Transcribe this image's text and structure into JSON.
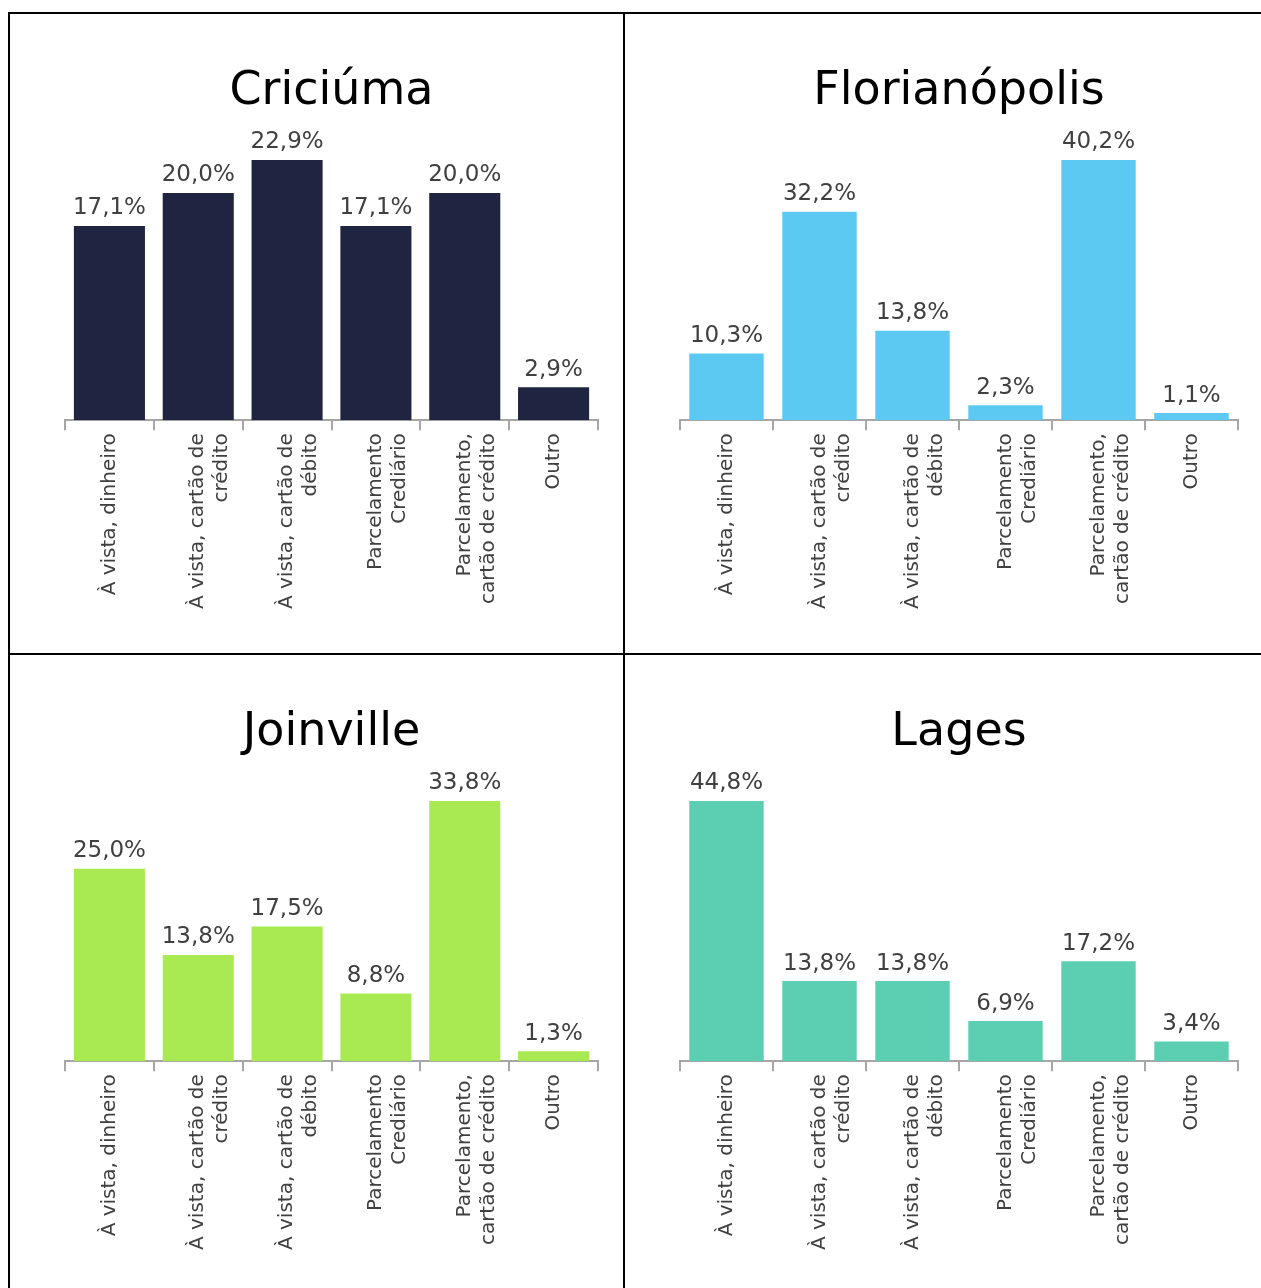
{
  "chart_data": [
    {
      "type": "bar",
      "title": "Criciúma",
      "categories": [
        "À vista, dinheiro",
        "À vista, cartão de crédito",
        "À vista, cartão de débito",
        "Parcelamento Crediário",
        "Parcelamento, cartão de crédito",
        "Outro"
      ],
      "values": [
        17.1,
        20.0,
        22.9,
        17.1,
        20.0,
        2.9
      ],
      "value_labels": [
        "17,1%",
        "20,0%",
        "22,9%",
        "17,1%",
        "20,0%",
        "2,9%"
      ],
      "color": "#1f2440"
    },
    {
      "type": "bar",
      "title": "Florianópolis",
      "categories": [
        "À vista, dinheiro",
        "À vista, cartão de crédito",
        "À vista, cartão de débito",
        "Parcelamento Crediário",
        "Parcelamento, cartão de crédito",
        "Outro"
      ],
      "values": [
        10.3,
        32.2,
        13.8,
        2.3,
        40.2,
        1.1
      ],
      "value_labels": [
        "10,3%",
        "32,2%",
        "13,8%",
        "2,3%",
        "40,2%",
        "1,1%"
      ],
      "color": "#5bc9f1"
    },
    {
      "type": "bar",
      "title": "Joinville",
      "categories": [
        "À vista, dinheiro",
        "À vista, cartão de crédito",
        "À vista, cartão de débito",
        "Parcelamento Crediário",
        "Parcelamento, cartão de crédito",
        "Outro"
      ],
      "values": [
        25.0,
        13.8,
        17.5,
        8.8,
        33.8,
        1.3
      ],
      "value_labels": [
        "25,0%",
        "13,8%",
        "17,5%",
        "8,8%",
        "33,8%",
        "1,3%"
      ],
      "color": "#a9e952"
    },
    {
      "type": "bar",
      "title": "Lages",
      "categories": [
        "À vista, dinheiro",
        "À vista, cartão de crédito",
        "À vista, cartão de débito",
        "Parcelamento Crediário",
        "Parcelamento, cartão de crédito",
        "Outro"
      ],
      "values": [
        44.8,
        13.8,
        13.8,
        6.9,
        17.2,
        3.4
      ],
      "value_labels": [
        "44,8%",
        "13,8%",
        "13,8%",
        "6,9%",
        "17,2%",
        "3,4%"
      ],
      "color": "#5ccfb2"
    }
  ]
}
